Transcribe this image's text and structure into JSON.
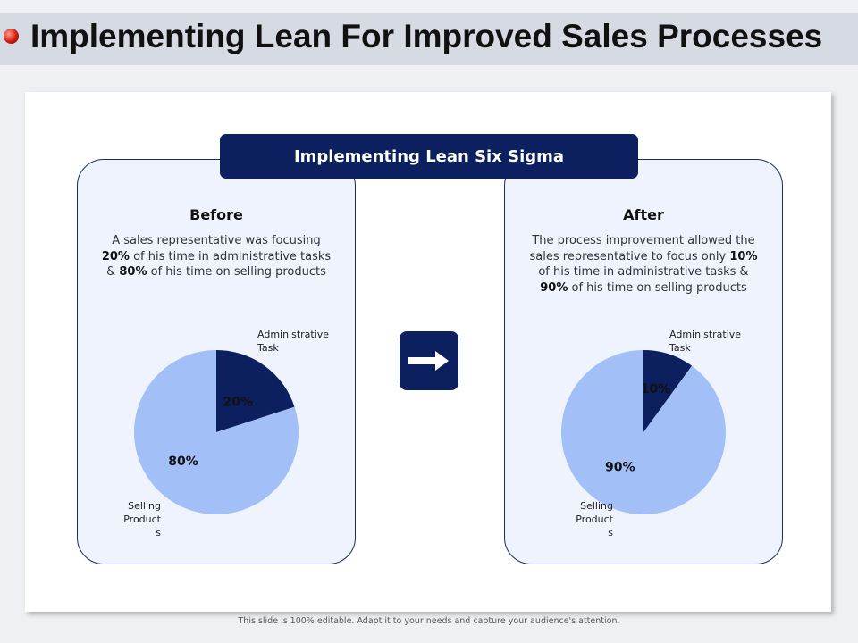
{
  "title": "Implementing Lean For Improved Sales Processes",
  "banner": "Implementing Lean Six Sigma",
  "before": {
    "heading": "Before",
    "desc_parts": [
      "A sales representative was focusing ",
      "20%",
      " of his time in administrative tasks & ",
      "80%",
      " of his time on selling products"
    ]
  },
  "after": {
    "heading": "After",
    "desc_parts": [
      "The process improvement allowed the sales representative to focus only ",
      "10%",
      " of his time in administrative tasks & ",
      "90%",
      " of his time on selling products"
    ]
  },
  "chart_data": [
    {
      "type": "pie",
      "categories": [
        "Administrative Task",
        "Selling Products"
      ],
      "values": [
        20,
        80
      ],
      "data_labels": [
        "20%",
        "80%"
      ],
      "colors": [
        "#0c1f5e",
        "#a2bff8"
      ]
    },
    {
      "type": "pie",
      "categories": [
        "Administrative Task",
        "Selling Products"
      ],
      "values": [
        10,
        90
      ],
      "data_labels": [
        "10%",
        "90%"
      ],
      "colors": [
        "#0c1f5e",
        "#a2bff8"
      ]
    }
  ],
  "labels": {
    "admin_line1": "Administrative",
    "admin_line2": "Task",
    "selling_line1": "Selling",
    "selling_line2": "Product",
    "selling_line3": "s"
  },
  "arrow_icon": "right-arrow-icon",
  "footer": "This slide is 100% editable. Adapt it to your needs and capture your audience's attention."
}
